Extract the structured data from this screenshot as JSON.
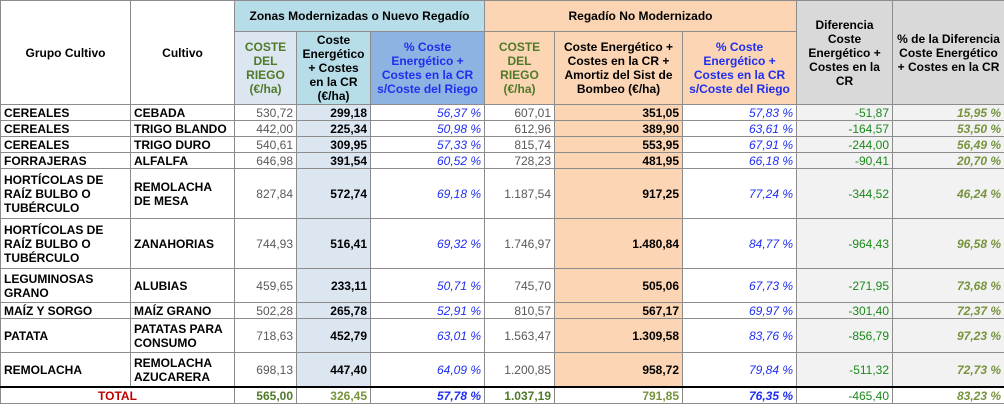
{
  "header": {
    "group_zonas": "Zonas Modernizadas o Nuevo Regadío",
    "group_regadio": "Regadío No Modernizado",
    "col_grupo": "Grupo Cultivo",
    "col_cultivo": "Cultivo",
    "col_coste_riego_1": "COSTE DEL RIEGO (€/ha)",
    "col_coste_energetico_1": "Coste Energético + Costes en la CR (€/ha)",
    "col_pct_1": "% Coste Energético + Costes en la CR s/Coste del Riego",
    "col_coste_riego_2": "COSTE DEL RIEGO (€/ha)",
    "col_coste_energetico_2": "Coste Energético + Costes en la CR + Amortiz del Sist de Bombeo (€/ha)",
    "col_pct_2": "% Coste Energético + Costes en la CR s/Coste del Riego",
    "col_diferencia": "Diferencia Coste Energético + Costes en la CR",
    "col_pct_diferencia": "% de la Diferencia Coste Energético + Costes en la CR"
  },
  "rows": [
    {
      "grupo": "CEREALES",
      "cultivo": "CEBADA",
      "c1": "530,72",
      "c2": "299,18",
      "c3": "56,37 %",
      "c4": "607,01",
      "c5": "351,05",
      "c6": "57,83 %",
      "c7": "-51,87",
      "c8": "15,95 %"
    },
    {
      "grupo": "CEREALES",
      "cultivo": "TRIGO BLANDO",
      "c1": "442,00",
      "c2": "225,34",
      "c3": "50,98 %",
      "c4": "612,96",
      "c5": "389,90",
      "c6": "63,61 %",
      "c7": "-164,57",
      "c8": "53,50 %"
    },
    {
      "grupo": "CEREALES",
      "cultivo": "TRIGO DURO",
      "c1": "540,61",
      "c2": "309,95",
      "c3": "57,33 %",
      "c4": "815,74",
      "c5": "553,95",
      "c6": "67,91 %",
      "c7": "-244,00",
      "c8": "56,49 %"
    },
    {
      "grupo": "FORRAJERAS",
      "cultivo": "ALFALFA",
      "c1": "646,98",
      "c2": "391,54",
      "c3": "60,52 %",
      "c4": "728,23",
      "c5": "481,95",
      "c6": "66,18 %",
      "c7": "-90,41",
      "c8": "20,70 %"
    },
    {
      "grupo": "HORTÍCOLAS DE RAÍZ BULBO O TUBÉRCULO",
      "cultivo": "REMOLACHA DE MESA",
      "c1": "827,84",
      "c2": "572,74",
      "c3": "69,18 %",
      "c4": "1.187,54",
      "c5": "917,25",
      "c6": "77,24 %",
      "c7": "-344,52",
      "c8": "46,24 %"
    },
    {
      "grupo": "HORTÍCOLAS DE RAÍZ BULBO O TUBÉRCULO",
      "cultivo": "ZANAHORIAS",
      "c1": "744,93",
      "c2": "516,41",
      "c3": "69,32 %",
      "c4": "1.746,97",
      "c5": "1.480,84",
      "c6": "84,77 %",
      "c7": "-964,43",
      "c8": "96,58 %"
    },
    {
      "grupo": "LEGUMINOSAS GRANO",
      "cultivo": "ALUBIAS",
      "c1": "459,65",
      "c2": "233,11",
      "c3": "50,71 %",
      "c4": "745,70",
      "c5": "505,06",
      "c6": "67,73 %",
      "c7": "-271,95",
      "c8": "73,68 %"
    },
    {
      "grupo": "MAÍZ Y SORGO",
      "cultivo": "MAÍZ GRANO",
      "c1": "502,28",
      "c2": "265,78",
      "c3": "52,91 %",
      "c4": "810,57",
      "c5": "567,17",
      "c6": "69,97 %",
      "c7": "-301,40",
      "c8": "72,37 %"
    },
    {
      "grupo": "PATATA",
      "cultivo": "PATATAS PARA CONSUMO",
      "c1": "718,63",
      "c2": "452,79",
      "c3": "63,01 %",
      "c4": "1.563,47",
      "c5": "1.309,58",
      "c6": "83,76 %",
      "c7": "-856,79",
      "c8": "97,23 %"
    },
    {
      "grupo": "REMOLACHA",
      "cultivo": "REMOLACHA AZUCARERA",
      "c1": "698,13",
      "c2": "447,40",
      "c3": "64,09 %",
      "c4": "1.200,85",
      "c5": "958,72",
      "c6": "79,84 %",
      "c7": "-511,32",
      "c8": "72,73 %"
    }
  ],
  "total": {
    "label": "TOTAL",
    "c1": "565,00",
    "c2": "326,45",
    "c3": "57,78 %",
    "c4": "1.037,19",
    "c5": "791,85",
    "c6": "76,35 %",
    "c7": "-465,40",
    "c8": "83,23 %"
  }
}
